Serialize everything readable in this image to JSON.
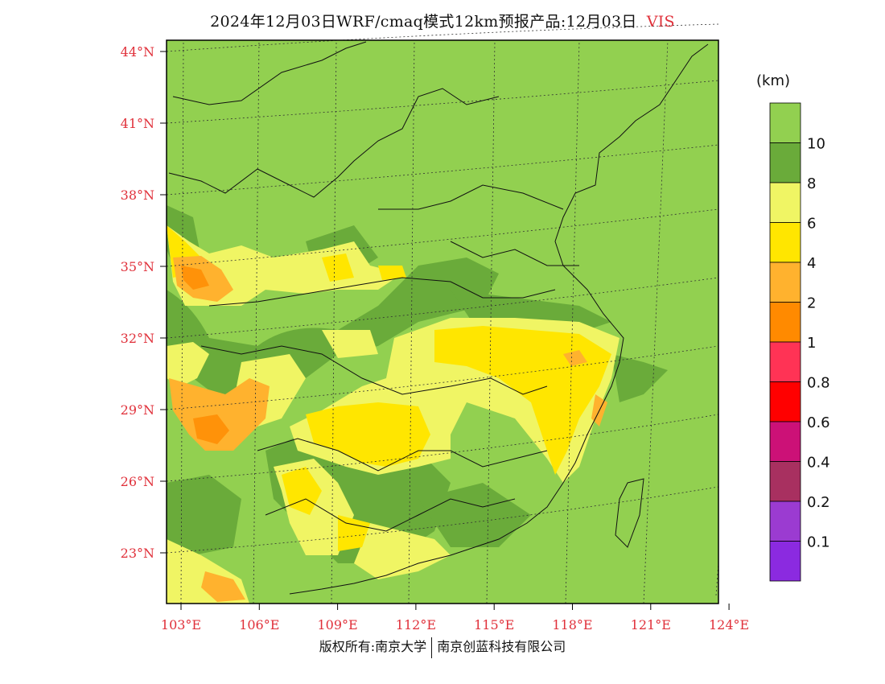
{
  "header": {
    "title": "2024年12月03日WRF/cmaq模式12km预报产品:12月03日",
    "variable": "VIS"
  },
  "colorbar": {
    "unit": "(km)",
    "levels": [
      {
        "label": "10",
        "color": "#92d050"
      },
      {
        "label": "8",
        "color": "#6aab3a"
      },
      {
        "label": "6",
        "color": "#f0f564"
      },
      {
        "label": "4",
        "color": "#ffe600"
      },
      {
        "label": "2",
        "color": "#ffb22e"
      },
      {
        "label": "1",
        "color": "#ff8a00"
      },
      {
        "label": "0.8",
        "color": "#ff3355"
      },
      {
        "label": "0.6",
        "color": "#ff0000"
      },
      {
        "label": "0.4",
        "color": "#cc1177"
      },
      {
        "label": "0.2",
        "color": "#a83060"
      },
      {
        "label": "0.1",
        "color": "#9b3bd1"
      },
      {
        "label": "",
        "color": "#8b2ae0"
      }
    ]
  },
  "axes": {
    "lat_labels": [
      "44°N",
      "41°N",
      "38°N",
      "35°N",
      "32°N",
      "29°N",
      "26°N",
      "23°N"
    ],
    "lon_labels": [
      "103°E",
      "106°E",
      "109°E",
      "112°E",
      "115°E",
      "118°E",
      "121°E",
      "124°E"
    ]
  },
  "footer": {
    "left": "版权所有:南京大学",
    "right": "南京创蓝科技有限公司"
  },
  "palette": {
    "background": "#92d050",
    "text_accent": "#e0303a"
  }
}
